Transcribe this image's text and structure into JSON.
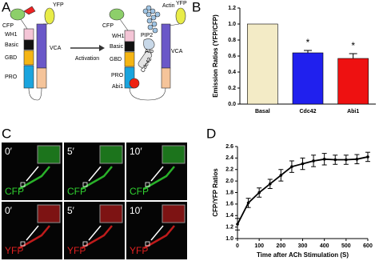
{
  "panel_labels": [
    "A",
    "B",
    "C",
    "D"
  ],
  "diagram": {
    "left": [
      "CFP",
      "YFP",
      "WH1",
      "Basic",
      "GBD",
      "PRO",
      "VCA"
    ],
    "arrow": "Activation",
    "right": [
      "CFP",
      "YFP",
      "Actin",
      "WH1",
      "PIP2",
      "Basic",
      "GBD",
      "Arp",
      "Cdc42",
      "PRO",
      "Abi1",
      "VCA"
    ]
  },
  "micrographs": {
    "times": [
      "0′",
      "5′",
      "10′"
    ],
    "channels": [
      "CFP",
      "YFP"
    ]
  },
  "chart_data": [
    {
      "type": "bar",
      "ylabel": "Emission Ratios (YFP/CFP)",
      "categories": [
        "Basal",
        "Cdc42",
        "Abi1"
      ],
      "values": [
        1.0,
        0.64,
        0.57
      ],
      "errors": [
        0,
        0.03,
        0.06
      ],
      "colors": [
        "#f3ebc6",
        "#2020ee",
        "#ee1111"
      ],
      "significance": [
        null,
        "*",
        "*"
      ],
      "ylim": [
        0,
        1.2
      ],
      "yticks": [
        {
          "value": 0,
          "label": "0.0"
        },
        {
          "value": 0.2,
          "label": "0.2"
        },
        {
          "value": 0.4,
          "label": "0.4"
        },
        {
          "value": 0.6,
          "label": "0.6"
        },
        {
          "value": 0.8,
          "label": "0.8"
        },
        {
          "value": 1.0,
          "label": "1.0"
        },
        {
          "value": 1.2,
          "label": "1.2"
        }
      ]
    },
    {
      "type": "line",
      "xlabel": "Time after ACh Stimulation (S)",
      "ylabel": "CFP/YFP Ratios",
      "x": [
        0,
        50,
        100,
        150,
        200,
        250,
        300,
        350,
        400,
        450,
        500,
        550,
        600
      ],
      "series": [
        {
          "name": "CFP/YFP",
          "color": "#000000",
          "values": [
            1.25,
            1.62,
            1.8,
            1.95,
            2.1,
            2.25,
            2.3,
            2.35,
            2.38,
            2.37,
            2.37,
            2.38,
            2.42
          ],
          "errors": [
            0.1,
            0.08,
            0.08,
            0.08,
            0.1,
            0.1,
            0.1,
            0.1,
            0.1,
            0.08,
            0.08,
            0.08,
            0.08
          ]
        }
      ],
      "xlim": [
        0,
        600
      ],
      "xticks": [
        0,
        100,
        200,
        300,
        400,
        500,
        600
      ],
      "ylim": [
        1.0,
        2.6
      ],
      "yticks": [
        {
          "value": 1.0,
          "label": "1.0"
        },
        {
          "value": 1.2,
          "label": "1.2"
        },
        {
          "value": 1.4,
          "label": "1.4"
        },
        {
          "value": 1.6,
          "label": "1.6"
        },
        {
          "value": 1.8,
          "label": "1.8"
        },
        {
          "value": 2.0,
          "label": "2.0"
        },
        {
          "value": 2.2,
          "label": "2.2"
        },
        {
          "value": 2.4,
          "label": "2.4"
        },
        {
          "value": 2.6,
          "label": "2.6"
        }
      ]
    }
  ]
}
